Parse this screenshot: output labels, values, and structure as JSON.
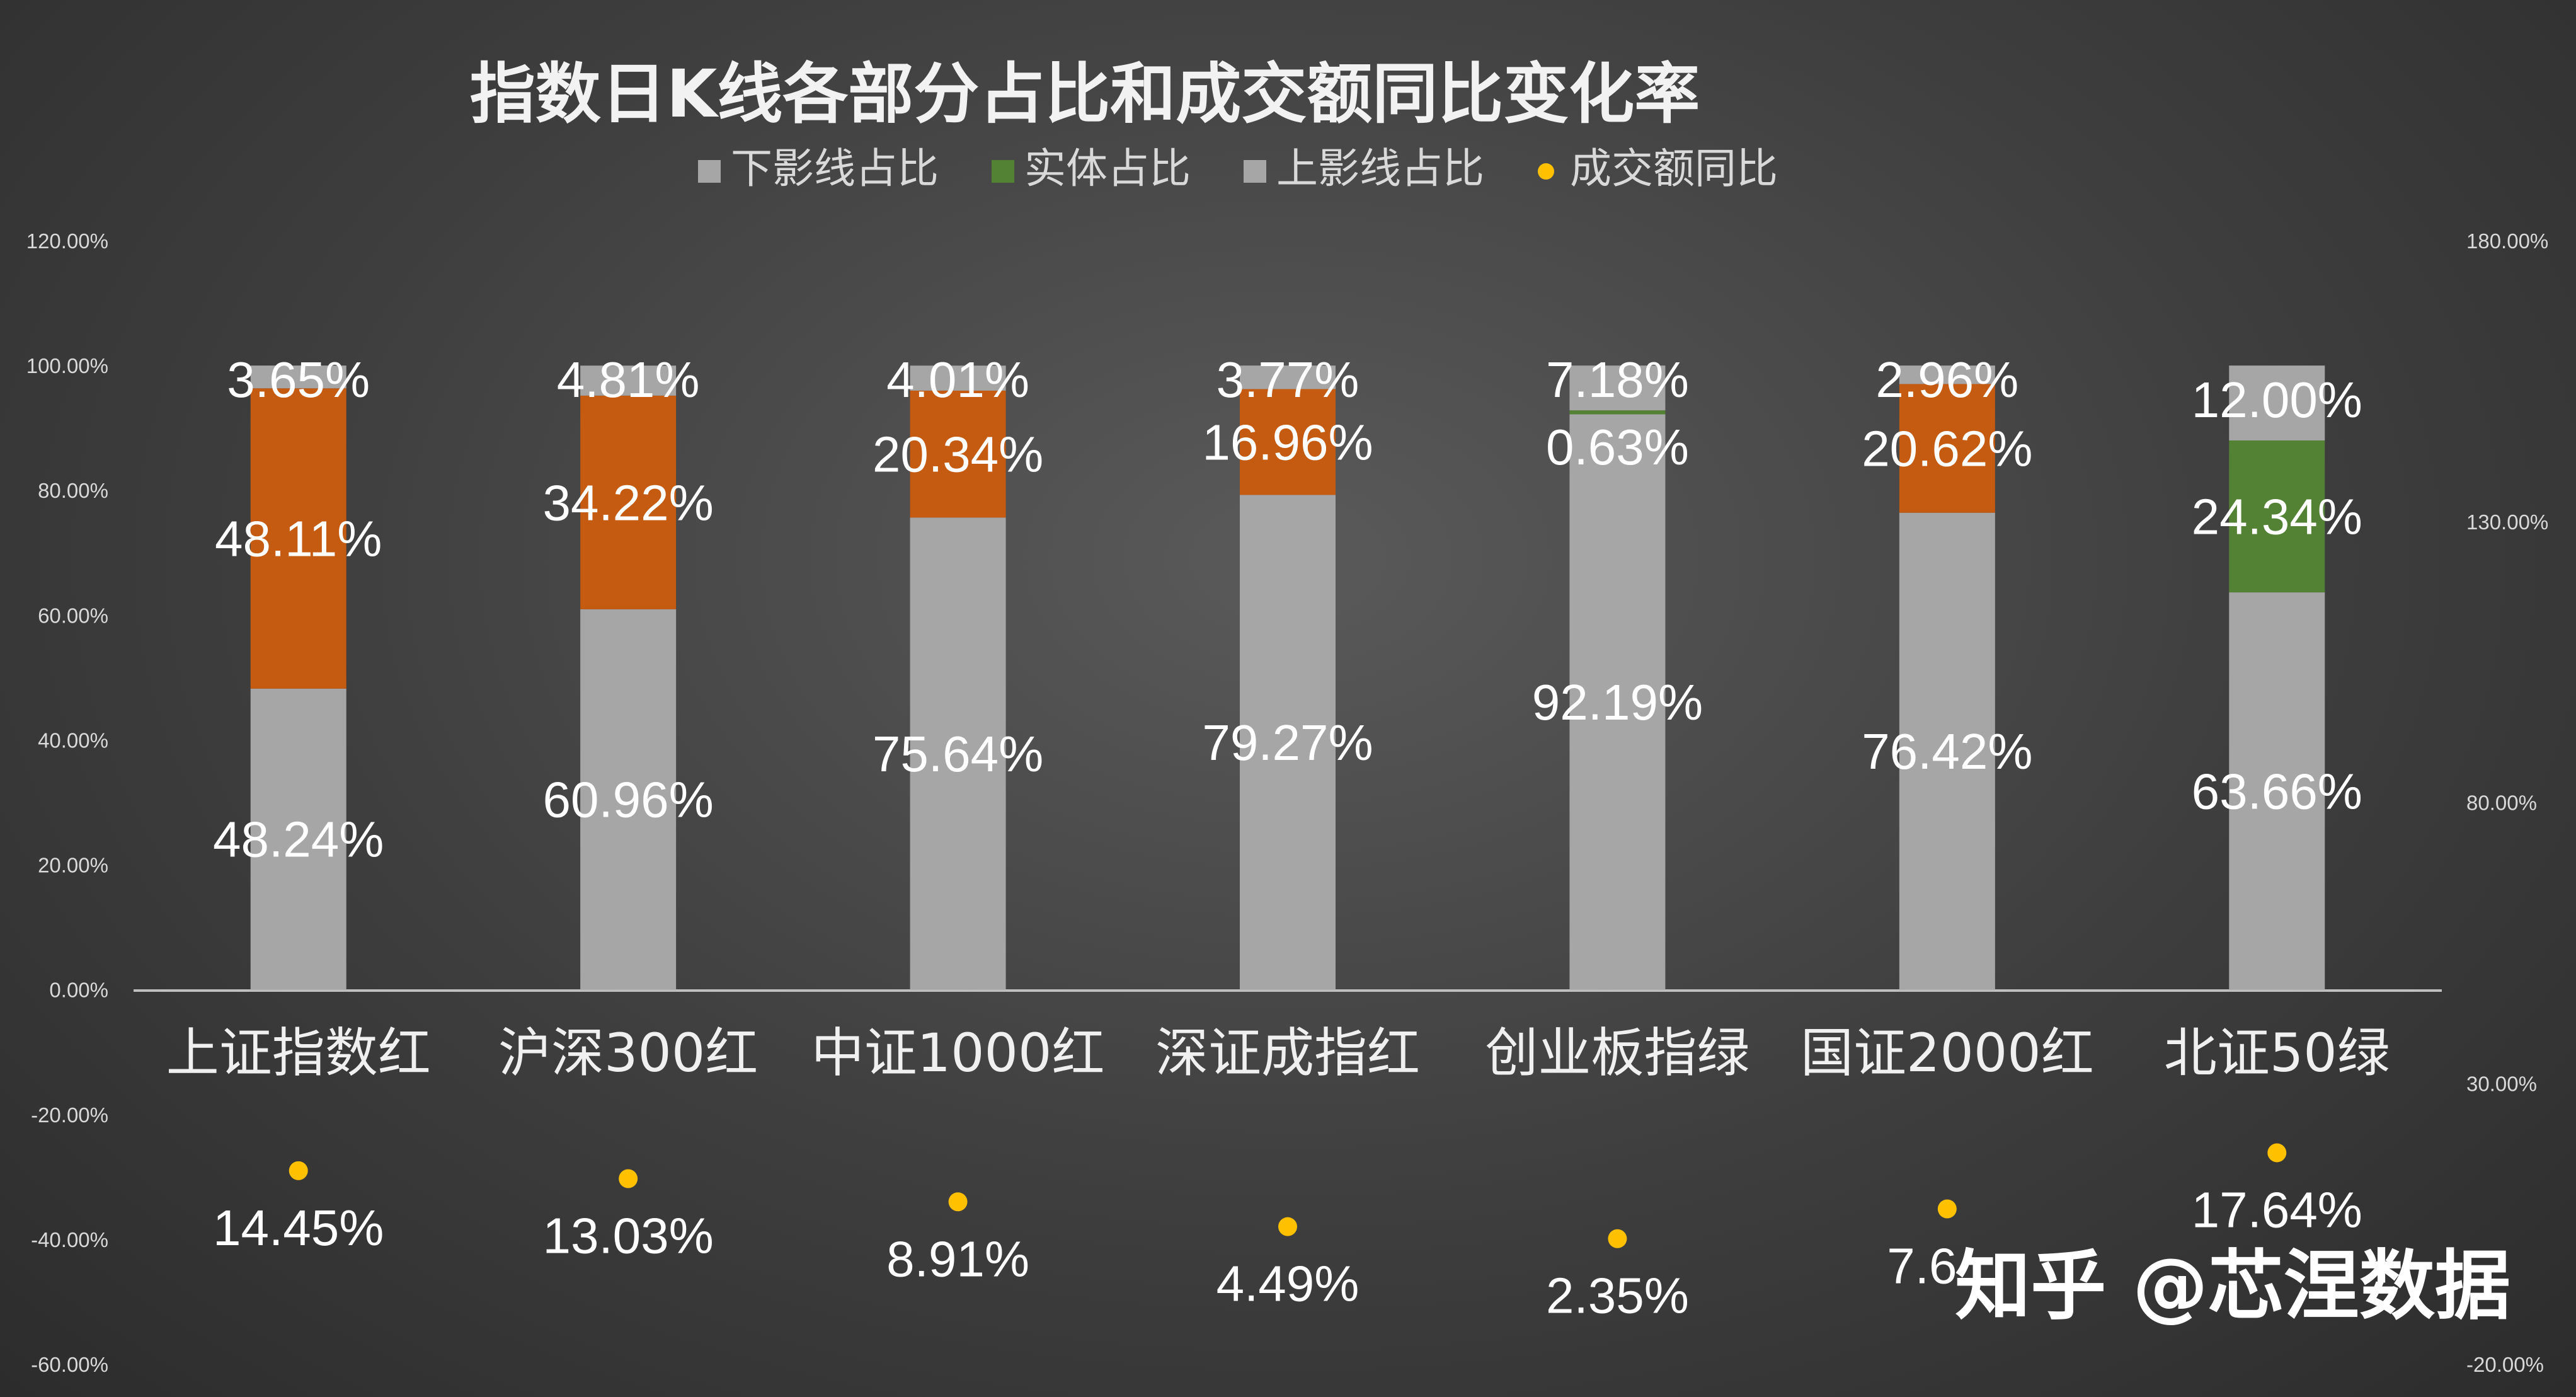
{
  "chart_data": {
    "type": "bar",
    "stacked": true,
    "title": "指数日K线各部分占比和成交额同比变化率",
    "categories": [
      "上证指数红",
      "沪深300红",
      "中证1000红",
      "深证成指红",
      "创业板指绿",
      "国证2000红",
      "北证50绿"
    ],
    "series": [
      {
        "name": "下影线占比",
        "axis": "left",
        "color": "#a6a6a6",
        "values": [
          48.24,
          60.96,
          75.64,
          79.27,
          92.19,
          76.42,
          63.66
        ],
        "labels": [
          "48.24%",
          "60.96%",
          "75.64%",
          "79.27%",
          "92.19%",
          "76.42%",
          "63.66%"
        ]
      },
      {
        "name": "实体占比",
        "axis": "left",
        "color": "#548235",
        "point_colors": [
          "#c55a11",
          "#c55a11",
          "#c55a11",
          "#c55a11",
          "#548235",
          "#c55a11",
          "#548235"
        ],
        "values": [
          48.11,
          34.22,
          20.34,
          16.96,
          0.63,
          20.62,
          24.34
        ],
        "labels": [
          "48.11%",
          "34.22%",
          "20.34%",
          "16.96%",
          "0.63%",
          "20.62%",
          "24.34%"
        ]
      },
      {
        "name": "上影线占比",
        "axis": "left",
        "color": "#a6a6a6",
        "values": [
          3.65,
          4.81,
          4.01,
          3.77,
          7.18,
          2.96,
          12.0
        ],
        "labels": [
          "3.65%",
          "4.81%",
          "4.01%",
          "3.77%",
          "7.18%",
          "2.96%",
          "12.00%"
        ]
      },
      {
        "name": "成交额同比",
        "type": "scatter",
        "axis": "right",
        "color": "#ffc000",
        "values": [
          14.45,
          13.03,
          8.91,
          4.49,
          2.35,
          7.65,
          17.64
        ],
        "labels": [
          "14.45%",
          "13.03%",
          "8.91%",
          "4.49%",
          "2.35%",
          "7.6…",
          "17.64%"
        ]
      }
    ],
    "y_left": {
      "ylim": [
        -60,
        120
      ],
      "ticks": [
        "120.00%",
        "100.00%",
        "80.00%",
        "60.00%",
        "40.00%",
        "20.00%",
        "0.00%",
        "-20.00%",
        "-40.00%",
        "-60.00%"
      ]
    },
    "y_right": {
      "ylim": [
        -20,
        180
      ],
      "ticks": [
        "180.00%",
        "130.00%",
        "80.00%",
        "30.00%",
        "-20.00%"
      ]
    },
    "legend_position": "top-center",
    "grid": false
  },
  "watermark": "知乎 @芯涅数据"
}
